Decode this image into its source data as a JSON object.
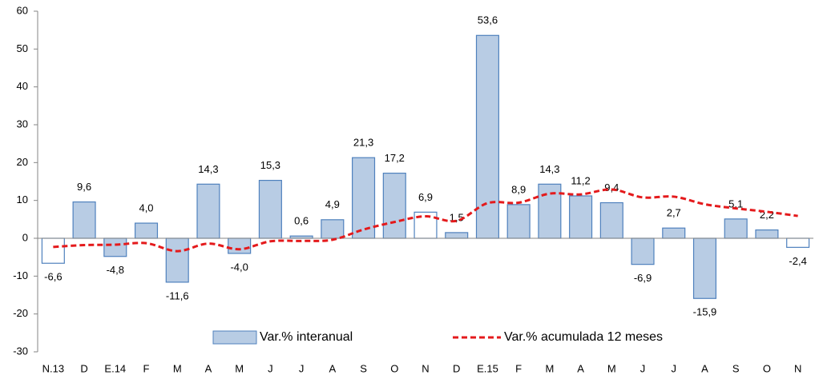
{
  "chart_data": {
    "type": "bar",
    "categories": [
      "N.13",
      "D",
      "E.14",
      "F",
      "M",
      "A",
      "M",
      "J",
      "J",
      "A",
      "S",
      "O",
      "N",
      "D",
      "E.15",
      "F",
      "M",
      "A",
      "M",
      "J",
      "J",
      "A",
      "S",
      "O",
      "N"
    ],
    "series": [
      {
        "name": "Var.% interanual",
        "type": "bar",
        "color": "#b8cce4",
        "edge": "#4f81bd",
        "colors": [
          "#ffffff",
          "#b8cce4",
          "#b8cce4",
          "#b8cce4",
          "#b8cce4",
          "#b8cce4",
          "#b8cce4",
          "#b8cce4",
          "#b8cce4",
          "#b8cce4",
          "#b8cce4",
          "#b8cce4",
          "#ffffff",
          "#b8cce4",
          "#b8cce4",
          "#b8cce4",
          "#b8cce4",
          "#b8cce4",
          "#b8cce4",
          "#b8cce4",
          "#b8cce4",
          "#b8cce4",
          "#b8cce4",
          "#b8cce4",
          "#ffffff"
        ],
        "values": [
          -6.6,
          9.6,
          -4.8,
          4.0,
          -11.6,
          14.3,
          -4.0,
          15.3,
          0.6,
          4.9,
          21.3,
          17.2,
          6.9,
          1.5,
          53.6,
          8.9,
          14.3,
          11.2,
          9.4,
          -6.9,
          2.7,
          -15.9,
          5.1,
          2.2,
          -2.4
        ],
        "value_labels": [
          "-6,6",
          "9,6",
          "-4,8",
          "4,0",
          "-11,6",
          "14,3",
          "-4,0",
          "15,3",
          "0,6",
          "4,9",
          "21,3",
          "17,2",
          "6,9",
          "1,5",
          "53,6",
          "8,9",
          "14,3",
          "11,2",
          "9,4",
          "-6,9",
          "2,7",
          "-15,9",
          "5,1",
          "2,2",
          "-2,4"
        ]
      },
      {
        "name": "Var.% acumulada 12 meses",
        "type": "line",
        "color": "#e41a1c",
        "values": [
          -2.3,
          -1.8,
          -1.7,
          -1.3,
          -3.4,
          -1.4,
          -2.9,
          -0.8,
          -0.7,
          -0.4,
          2.3,
          4.3,
          5.8,
          4.6,
          9.3,
          9.4,
          11.8,
          11.6,
          12.9,
          10.8,
          11.0,
          9.0,
          7.9,
          7.0,
          5.9
        ]
      }
    ],
    "ylim": [
      -30,
      60
    ],
    "yticks": [
      -30,
      -20,
      -10,
      0,
      10,
      20,
      30,
      40,
      50,
      60
    ]
  }
}
